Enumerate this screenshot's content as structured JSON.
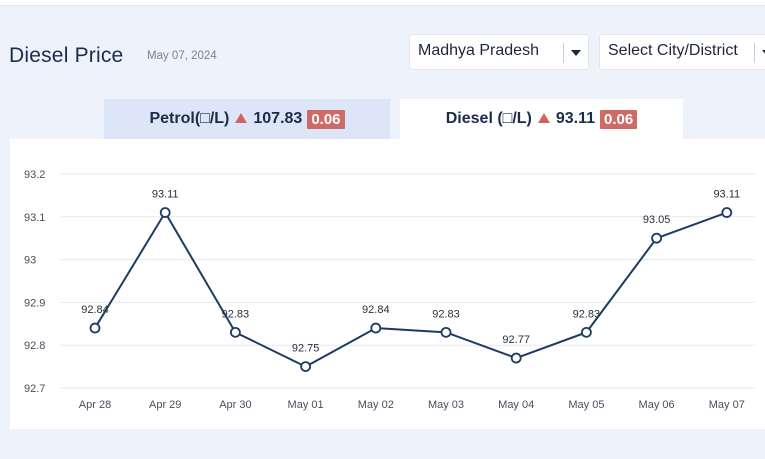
{
  "header": {
    "title": "Diesel Price",
    "date": "May 07, 2024"
  },
  "filters": {
    "state": "Madhya Pradesh",
    "city": "Select City/District"
  },
  "tabs": [
    {
      "label": "Petrol(□/L)",
      "price": "107.83",
      "change": "0.06",
      "active": false
    },
    {
      "label": "Diesel (□/L)",
      "price": "93.11",
      "change": "0.06",
      "active": true
    }
  ],
  "colors": {
    "line": "#1d3b63",
    "up_arrow": "#d0645f",
    "badge": "#cf6b66",
    "active_tab": "#ffffff",
    "inactive_tab": "#dce6f8"
  },
  "chart_data": {
    "type": "line",
    "title": "",
    "xlabel": "",
    "ylabel": "",
    "categories": [
      "Apr 28",
      "Apr 29",
      "Apr 30",
      "May 01",
      "May 02",
      "May 03",
      "May 04",
      "May 05",
      "May 06",
      "May 07"
    ],
    "series": [
      {
        "values": [
          92.84,
          93.11,
          92.83,
          92.75,
          92.84,
          92.83,
          92.77,
          92.83,
          93.05,
          93.11
        ]
      }
    ],
    "ylim": [
      92.7,
      93.2
    ],
    "yticks": [
      "92.7",
      "92.8",
      "92.9",
      "93",
      "93.1",
      "93.2"
    ],
    "data_labels": [
      "92.84",
      "93.11",
      "92.83",
      "92.75",
      "92.84",
      "92.83",
      "92.77",
      "92.83",
      "93.05",
      "93.11"
    ],
    "grid": true,
    "legend": "none"
  }
}
